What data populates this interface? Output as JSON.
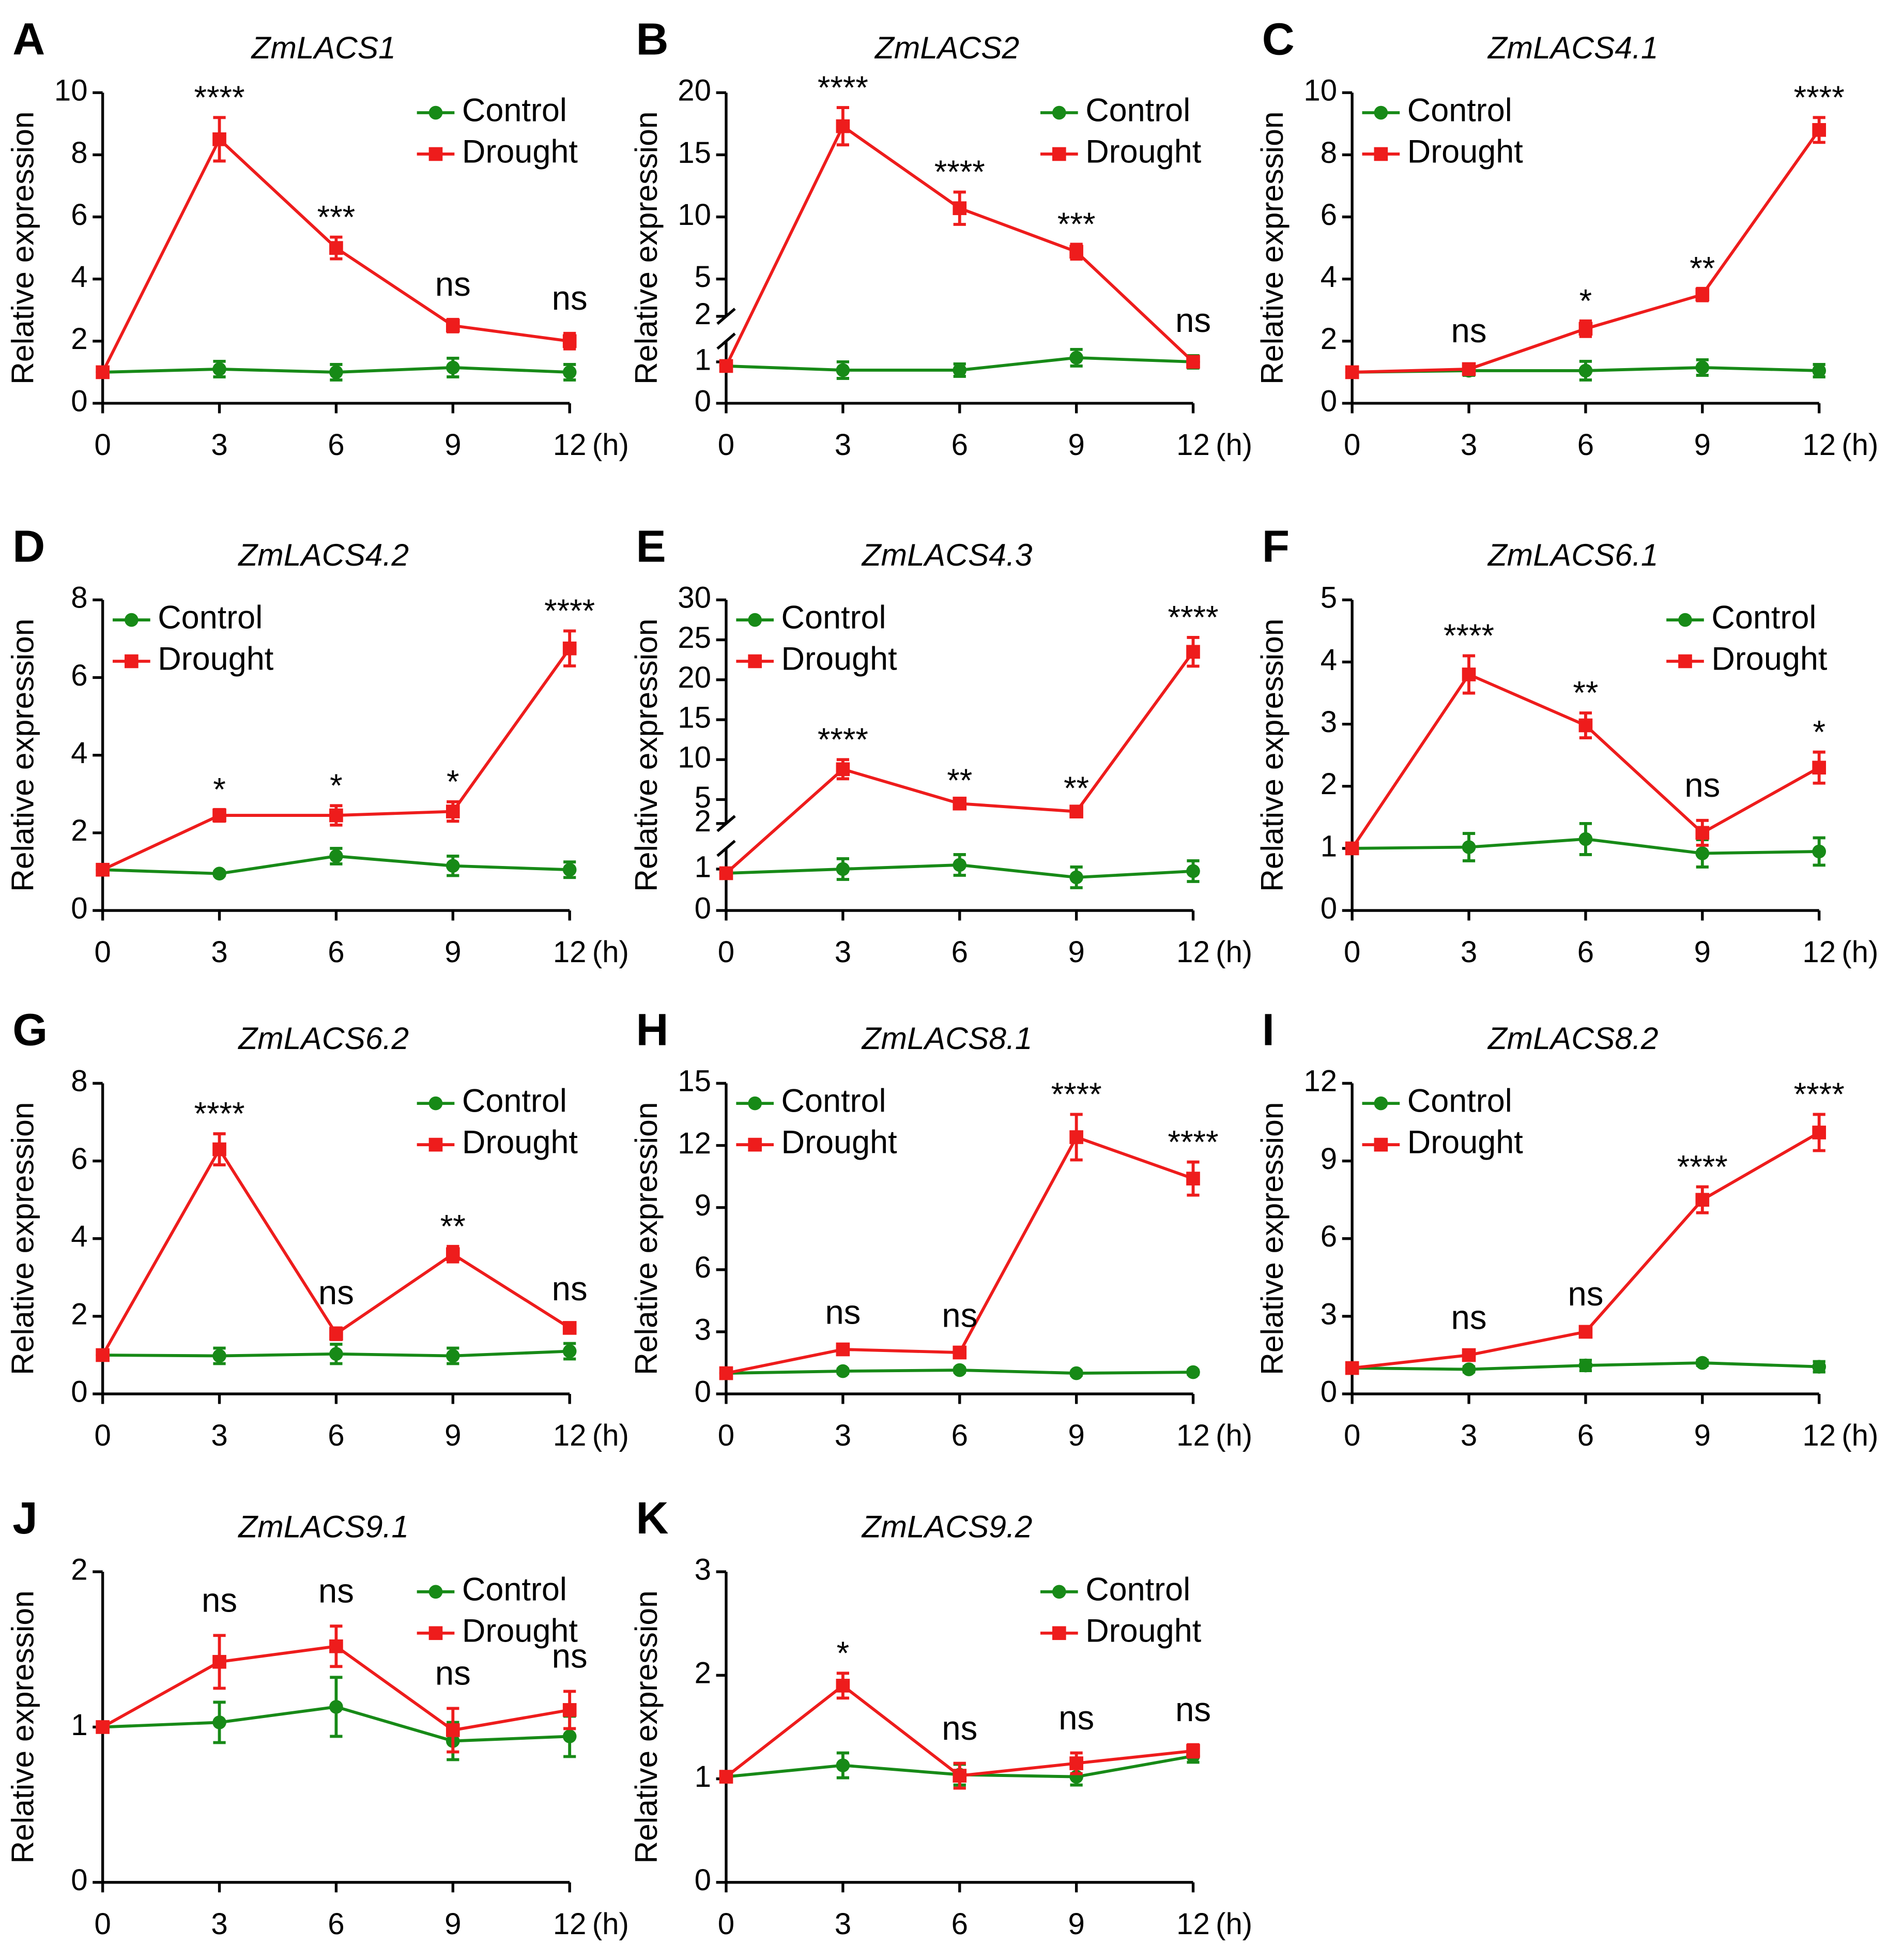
{
  "chart_data": [
    {
      "type": "line",
      "panel": "A",
      "title": "ZmLACS1",
      "ylabel": "Relative expression",
      "x_unit": "(h)",
      "x": [
        0,
        3,
        6,
        9,
        12
      ],
      "xlim": [
        0,
        12
      ],
      "xticks": [
        0,
        3,
        6,
        9,
        12
      ],
      "ylim": [
        0,
        10
      ],
      "yticks": [
        0,
        2,
        4,
        6,
        8,
        10
      ],
      "legend": "upper right",
      "series": [
        {
          "name": "Control",
          "color": "#178a17",
          "marker": "circle",
          "values": [
            1,
            1.1,
            1.0,
            1.15,
            1.0
          ],
          "errors": [
            0.1,
            0.25,
            0.25,
            0.3,
            0.25
          ]
        },
        {
          "name": "Drought",
          "color": "#ee1c1c",
          "marker": "square",
          "values": [
            1,
            8.5,
            5,
            2.5,
            2
          ],
          "errors": [
            0,
            0.7,
            0.35,
            0.2,
            0.25
          ]
        }
      ],
      "significance": [
        null,
        "****",
        "***",
        "ns",
        "ns"
      ]
    },
    {
      "type": "line",
      "panel": "B",
      "title": "ZmLACS2",
      "ylabel": "Relative expression",
      "x_unit": "(h)",
      "x": [
        0,
        3,
        6,
        9,
        12
      ],
      "xlim": [
        0,
        12
      ],
      "xticks": [
        0,
        3,
        6,
        9,
        12
      ],
      "ylim": [
        0,
        20
      ],
      "y_break": [
        1.5,
        2
      ],
      "yticks": [
        0,
        1,
        2,
        5,
        10,
        15,
        20
      ],
      "legend": "upper right",
      "series": [
        {
          "name": "Control",
          "color": "#178a17",
          "marker": "circle",
          "values": [
            0.9,
            0.8,
            0.8,
            1.1,
            1.0
          ],
          "errors": [
            0.1,
            0.2,
            0.15,
            0.2,
            0.15
          ]
        },
        {
          "name": "Drought",
          "color": "#ee1c1c",
          "marker": "square",
          "values": [
            0.9,
            17.3,
            10.7,
            7.2,
            1.0
          ],
          "errors": [
            0,
            1.5,
            1.3,
            0.6,
            0.1
          ]
        }
      ],
      "significance": [
        null,
        "****",
        "****",
        "***",
        "ns"
      ]
    },
    {
      "type": "line",
      "panel": "C",
      "title": "ZmLACS4.1",
      "ylabel": "Relative expression",
      "x_unit": "(h)",
      "x": [
        0,
        3,
        6,
        9,
        12
      ],
      "xlim": [
        0,
        12
      ],
      "xticks": [
        0,
        3,
        6,
        9,
        12
      ],
      "ylim": [
        0,
        10
      ],
      "yticks": [
        0,
        2,
        4,
        6,
        8,
        10
      ],
      "legend": "upper left",
      "series": [
        {
          "name": "Control",
          "color": "#178a17",
          "marker": "circle",
          "values": [
            1,
            1.05,
            1.05,
            1.15,
            1.05
          ],
          "errors": [
            0.1,
            0.15,
            0.3,
            0.25,
            0.2
          ]
        },
        {
          "name": "Drought",
          "color": "#ee1c1c",
          "marker": "square",
          "values": [
            1,
            1.1,
            2.4,
            3.5,
            8.8
          ],
          "errors": [
            0,
            0.1,
            0.25,
            0.2,
            0.4
          ]
        }
      ],
      "significance": [
        null,
        "ns",
        "*",
        "**",
        "****"
      ]
    },
    {
      "type": "line",
      "panel": "D",
      "title": "ZmLACS4.2",
      "ylabel": "Relative expression",
      "x_unit": "(h)",
      "x": [
        0,
        3,
        6,
        9,
        12
      ],
      "xlim": [
        0,
        12
      ],
      "xticks": [
        0,
        3,
        6,
        9,
        12
      ],
      "ylim": [
        0,
        8
      ],
      "yticks": [
        0,
        2,
        4,
        6,
        8
      ],
      "legend": "upper left",
      "series": [
        {
          "name": "Control",
          "color": "#178a17",
          "marker": "circle",
          "values": [
            1.05,
            0.95,
            1.4,
            1.15,
            1.05
          ],
          "errors": [
            0.1,
            0.05,
            0.2,
            0.25,
            0.2
          ]
        },
        {
          "name": "Drought",
          "color": "#ee1c1c",
          "marker": "square",
          "values": [
            1.05,
            2.45,
            2.45,
            2.55,
            6.75
          ],
          "errors": [
            0,
            0.15,
            0.25,
            0.25,
            0.45
          ]
        }
      ],
      "significance": [
        null,
        "*",
        "*",
        "*",
        "****"
      ]
    },
    {
      "type": "line",
      "panel": "E",
      "title": "ZmLACS4.3",
      "ylabel": "Relative expression",
      "x_unit": "(h)",
      "x": [
        0,
        3,
        6,
        9,
        12
      ],
      "xlim": [
        0,
        12
      ],
      "xticks": [
        0,
        3,
        6,
        9,
        12
      ],
      "ylim": [
        0,
        30
      ],
      "y_break": [
        1.5,
        2
      ],
      "yticks": [
        0,
        1,
        2,
        5,
        10,
        15,
        20,
        25,
        30
      ],
      "legend": "upper left",
      "series": [
        {
          "name": "Control",
          "color": "#178a17",
          "marker": "circle",
          "values": [
            0.9,
            1.0,
            1.1,
            0.8,
            0.95
          ],
          "errors": [
            0.1,
            0.25,
            0.25,
            0.25,
            0.25
          ]
        },
        {
          "name": "Drought",
          "color": "#ee1c1c",
          "marker": "square",
          "values": [
            0.9,
            8.8,
            4.5,
            3.5,
            23.5
          ],
          "errors": [
            0,
            1.2,
            0.4,
            0.4,
            1.8
          ]
        }
      ],
      "significance": [
        null,
        "****",
        "**",
        "**",
        "****"
      ]
    },
    {
      "type": "line",
      "panel": "F",
      "title": "ZmLACS6.1",
      "ylabel": "Relative expression",
      "x_unit": "(h)",
      "x": [
        0,
        3,
        6,
        9,
        12
      ],
      "xlim": [
        0,
        12
      ],
      "xticks": [
        0,
        3,
        6,
        9,
        12
      ],
      "ylim": [
        0,
        5
      ],
      "yticks": [
        0,
        1,
        2,
        3,
        4,
        5
      ],
      "legend": "upper right",
      "series": [
        {
          "name": "Control",
          "color": "#178a17",
          "marker": "circle",
          "values": [
            1,
            1.02,
            1.15,
            0.92,
            0.95
          ],
          "errors": [
            0.05,
            0.22,
            0.25,
            0.22,
            0.22
          ]
        },
        {
          "name": "Drought",
          "color": "#ee1c1c",
          "marker": "square",
          "values": [
            1,
            3.8,
            2.98,
            1.25,
            2.3
          ],
          "errors": [
            0,
            0.3,
            0.2,
            0.2,
            0.25
          ]
        }
      ],
      "significance": [
        null,
        "****",
        "**",
        "ns",
        "*"
      ]
    },
    {
      "type": "line",
      "panel": "G",
      "title": "ZmLACS6.2",
      "ylabel": "Relative expression",
      "x_unit": "(h)",
      "x": [
        0,
        3,
        6,
        9,
        12
      ],
      "xlim": [
        0,
        12
      ],
      "xticks": [
        0,
        3,
        6,
        9,
        12
      ],
      "ylim": [
        0,
        8
      ],
      "yticks": [
        0,
        2,
        4,
        6,
        8
      ],
      "legend": "upper right",
      "series": [
        {
          "name": "Control",
          "color": "#178a17",
          "marker": "circle",
          "values": [
            1,
            0.98,
            1.03,
            0.98,
            1.1
          ],
          "errors": [
            0.05,
            0.2,
            0.25,
            0.2,
            0.2
          ]
        },
        {
          "name": "Drought",
          "color": "#ee1c1c",
          "marker": "square",
          "values": [
            1,
            6.3,
            1.55,
            3.6,
            1.7
          ],
          "errors": [
            0,
            0.4,
            0.15,
            0.2,
            0.1
          ]
        }
      ],
      "significance": [
        null,
        "****",
        "ns",
        "**",
        "ns"
      ]
    },
    {
      "type": "line",
      "panel": "H",
      "title": "ZmLACS8.1",
      "ylabel": "Relative expression",
      "x_unit": "(h)",
      "x": [
        0,
        3,
        6,
        9,
        12
      ],
      "xlim": [
        0,
        12
      ],
      "xticks": [
        0,
        3,
        6,
        9,
        12
      ],
      "ylim": [
        0,
        15
      ],
      "yticks": [
        0,
        3,
        6,
        9,
        12,
        15
      ],
      "legend": "upper left",
      "series": [
        {
          "name": "Control",
          "color": "#178a17",
          "marker": "circle",
          "values": [
            1,
            1.1,
            1.15,
            1.0,
            1.05
          ],
          "errors": [
            0.05,
            0.1,
            0.1,
            0.1,
            0.1
          ]
        },
        {
          "name": "Drought",
          "color": "#ee1c1c",
          "marker": "square",
          "values": [
            1,
            2.15,
            2.0,
            12.4,
            10.4
          ],
          "errors": [
            0,
            0.1,
            0.1,
            1.1,
            0.8
          ]
        }
      ],
      "significance": [
        null,
        "ns",
        "ns",
        "****",
        "****"
      ]
    },
    {
      "type": "line",
      "panel": "I",
      "title": "ZmLACS8.2",
      "ylabel": "Relative expression",
      "x_unit": "(h)",
      "x": [
        0,
        3,
        6,
        9,
        12
      ],
      "xlim": [
        0,
        12
      ],
      "xticks": [
        0,
        3,
        6,
        9,
        12
      ],
      "ylim": [
        0,
        12
      ],
      "yticks": [
        0,
        3,
        6,
        9,
        12
      ],
      "legend": "upper left",
      "series": [
        {
          "name": "Control",
          "color": "#178a17",
          "marker": "circle",
          "values": [
            1,
            0.95,
            1.1,
            1.2,
            1.05
          ],
          "errors": [
            0.05,
            0.1,
            0.2,
            0.1,
            0.2
          ]
        },
        {
          "name": "Drought",
          "color": "#ee1c1c",
          "marker": "square",
          "values": [
            1,
            1.5,
            2.4,
            7.5,
            10.1
          ],
          "errors": [
            0,
            0.1,
            0.1,
            0.5,
            0.7
          ]
        }
      ],
      "significance": [
        null,
        "ns",
        "ns",
        "****",
        "****"
      ]
    },
    {
      "type": "line",
      "panel": "J",
      "title": "ZmLACS9.1",
      "ylabel": "Relative expression",
      "x_unit": "(h)",
      "x": [
        0,
        3,
        6,
        9,
        12
      ],
      "xlim": [
        0,
        12
      ],
      "xticks": [
        0,
        3,
        6,
        9,
        12
      ],
      "ylim": [
        0,
        2
      ],
      "yticks": [
        0,
        1,
        2
      ],
      "legend": "upper right",
      "series": [
        {
          "name": "Control",
          "color": "#178a17",
          "marker": "circle",
          "values": [
            1,
            1.03,
            1.13,
            0.91,
            0.94
          ],
          "errors": [
            0,
            0.13,
            0.19,
            0.12,
            0.13
          ]
        },
        {
          "name": "Drought",
          "color": "#ee1c1c",
          "marker": "square",
          "values": [
            1,
            1.42,
            1.52,
            0.98,
            1.11
          ],
          "errors": [
            0,
            0.17,
            0.13,
            0.14,
            0.12
          ]
        }
      ],
      "significance": [
        null,
        "ns",
        "ns",
        "ns",
        "ns"
      ]
    },
    {
      "type": "line",
      "panel": "K",
      "title": "ZmLACS9.2",
      "ylabel": "Relative expression",
      "x_unit": "(h)",
      "x": [
        0,
        3,
        6,
        9,
        12
      ],
      "xlim": [
        0,
        12
      ],
      "xticks": [
        0,
        3,
        6,
        9,
        12
      ],
      "ylim": [
        0,
        3
      ],
      "yticks": [
        0,
        1,
        2,
        3
      ],
      "legend": "upper right",
      "series": [
        {
          "name": "Control",
          "color": "#178a17",
          "marker": "circle",
          "values": [
            1.02,
            1.13,
            1.04,
            1.02,
            1.22
          ],
          "errors": [
            0,
            0.12,
            0.1,
            0.08,
            0.06
          ]
        },
        {
          "name": "Drought",
          "color": "#ee1c1c",
          "marker": "square",
          "values": [
            1.02,
            1.9,
            1.03,
            1.15,
            1.27
          ],
          "errors": [
            0,
            0.12,
            0.12,
            0.1,
            0.06
          ]
        }
      ],
      "significance": [
        null,
        "*",
        "ns",
        "ns",
        "ns"
      ]
    }
  ]
}
